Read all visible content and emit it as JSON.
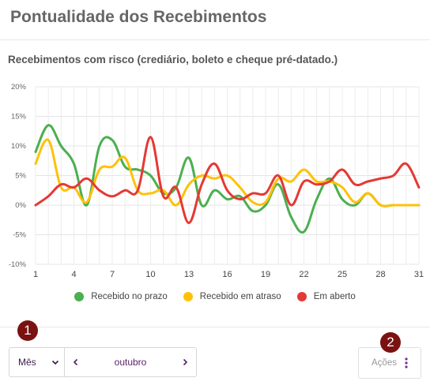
{
  "card": {
    "title": "Pontualidade dos Recebimentos",
    "subtitle": "Recebimentos com risco (crediário, boleto e cheque pré-datado.)"
  },
  "chart_data": {
    "type": "line",
    "title": "",
    "xlabel": "",
    "ylabel": "",
    "x": [
      1,
      2,
      3,
      4,
      5,
      6,
      7,
      8,
      9,
      10,
      11,
      12,
      13,
      14,
      15,
      16,
      17,
      18,
      19,
      20,
      21,
      22,
      23,
      24,
      25,
      26,
      27,
      28,
      29,
      30,
      31
    ],
    "x_tick_labels": [
      "1",
      "4",
      "7",
      "10",
      "13",
      "16",
      "19",
      "22",
      "25",
      "28",
      "31"
    ],
    "x_ticks": [
      1,
      4,
      7,
      10,
      13,
      16,
      19,
      22,
      25,
      28,
      31
    ],
    "ylim": [
      -10,
      20
    ],
    "y_ticks": [
      -10,
      -5,
      0,
      5,
      10,
      15,
      20
    ],
    "y_tick_labels": [
      "-10%",
      "-5%",
      "0%",
      "5%",
      "10%",
      "15%",
      "20%"
    ],
    "grid": true,
    "legend_position": "bottom",
    "series": [
      {
        "name": "Recebido no prazo",
        "color": "#4caf50",
        "values": [
          9,
          13.5,
          10,
          7,
          0,
          10,
          11,
          6.5,
          6,
          5,
          2,
          3,
          8,
          0,
          2.5,
          1,
          1.5,
          -1,
          0,
          3.5,
          -2,
          -4.5,
          1,
          4.5,
          1,
          0,
          2,
          0,
          0,
          0,
          0
        ]
      },
      {
        "name": "Recebido em atraso",
        "color": "#ffc107",
        "values": [
          7,
          11,
          3,
          3,
          0.5,
          6,
          6.5,
          8,
          2.5,
          2,
          2.5,
          0,
          3.5,
          5,
          4.5,
          5,
          3,
          0.5,
          0.5,
          4.5,
          4,
          6,
          4,
          4,
          3,
          0.5,
          2,
          0,
          0,
          0,
          0
        ]
      },
      {
        "name": "Em aberto",
        "color": "#e53935",
        "values": [
          0,
          1.5,
          3.5,
          3,
          4.5,
          2.5,
          1.5,
          2.5,
          2.5,
          11.5,
          1.5,
          3,
          -3,
          3.5,
          7,
          2.5,
          1,
          2,
          2,
          5,
          0,
          4,
          3.5,
          4,
          6,
          3.5,
          4,
          4.5,
          5,
          7,
          3
        ]
      }
    ]
  },
  "footer": {
    "mode_label": "Mês",
    "month_label": "outubro",
    "actions_label": "Ações",
    "badge_1": "1",
    "badge_2": "2"
  },
  "icons": {
    "mode_dropdown": "chevron-down-icon",
    "prev_month": "chevron-left-icon",
    "next_month": "chevron-right-icon",
    "actions_menu": "kebab-menu-icon"
  },
  "colors": {
    "accent": "#5a1f6b",
    "badge": "#7a1212"
  }
}
